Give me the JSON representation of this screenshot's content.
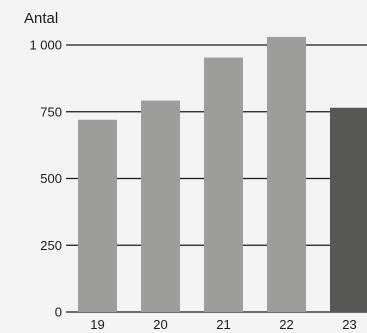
{
  "chart_data": {
    "type": "bar",
    "title": "",
    "xlabel": "",
    "ylabel": "Antal",
    "categories": [
      "19",
      "20",
      "21",
      "22",
      "23"
    ],
    "values": [
      720,
      792,
      953,
      1030,
      765
    ],
    "ylim": [
      0,
      1000
    ],
    "yticks": [
      0,
      250,
      500,
      750,
      1000
    ],
    "ytick_labels": [
      "0",
      "250",
      "500",
      "750",
      "1 000"
    ],
    "grid": true,
    "legend": "none",
    "colors": {
      "bar": "#9d9e9b",
      "highlight_bar": "#575856",
      "highlight_index": 4,
      "grid": "#1a1a1a",
      "background": "#f4f4f4"
    }
  }
}
